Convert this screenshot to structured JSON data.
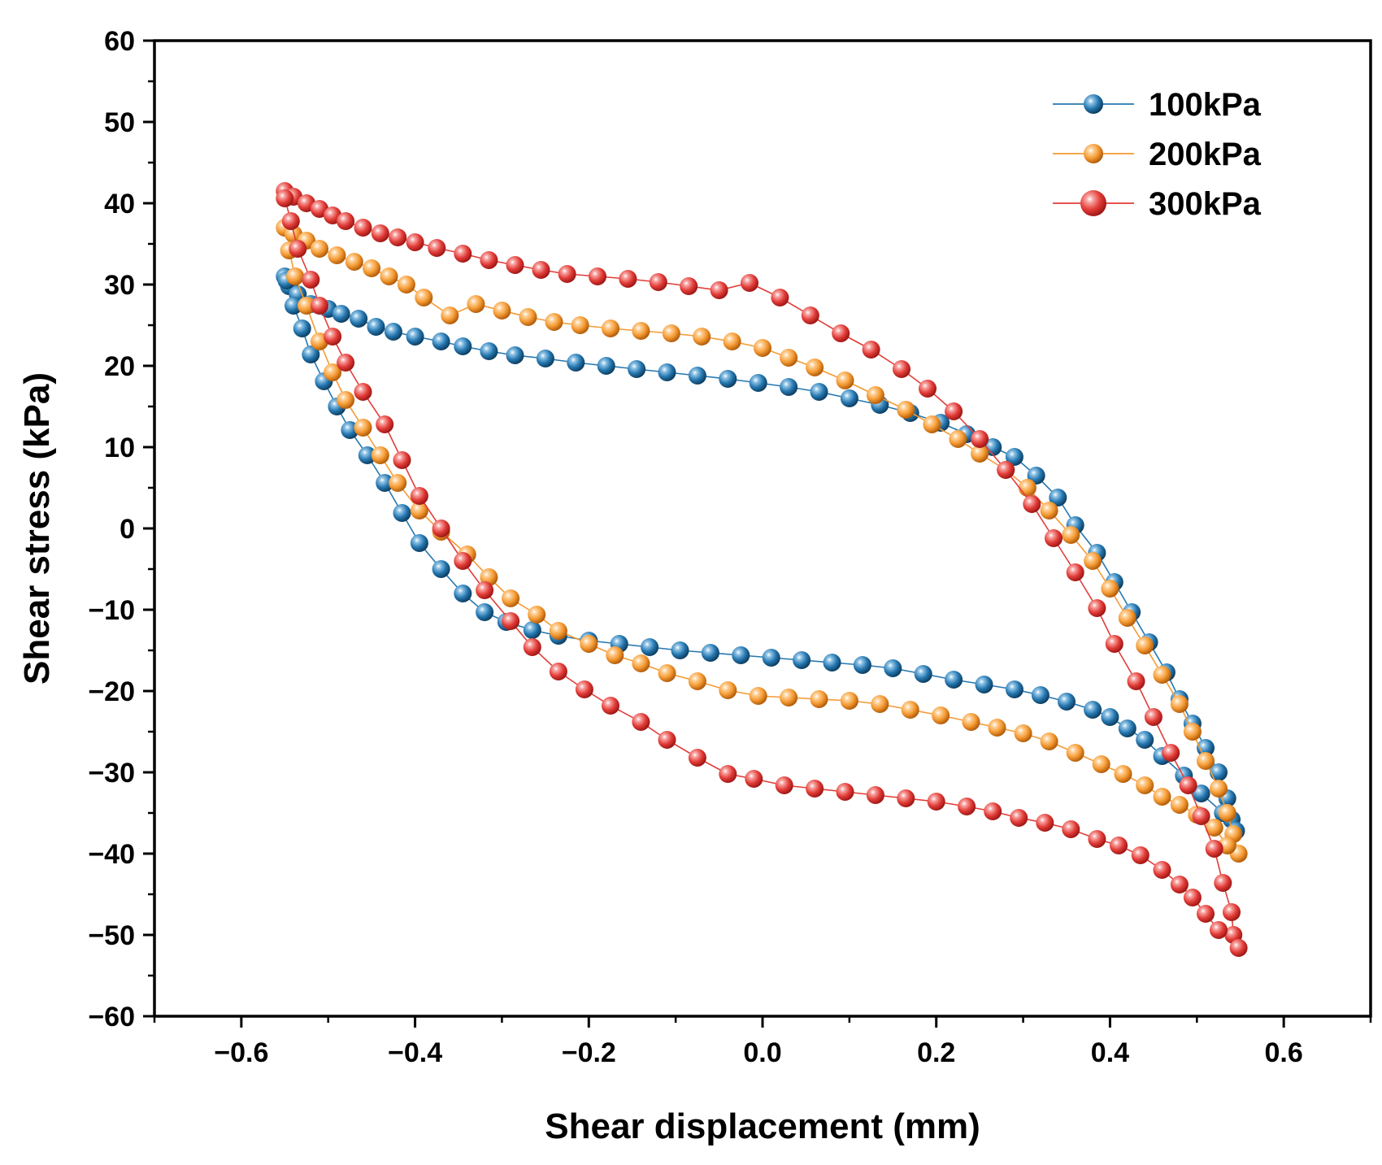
{
  "chart_data": {
    "type": "scatter",
    "title": "",
    "xlabel": "Shear displacement (mm)",
    "ylabel": "Shear stress (kPa)",
    "xlim": [
      -0.7,
      0.7
    ],
    "ylim": [
      -60,
      60
    ],
    "x_ticks": [
      -0.6,
      -0.4,
      -0.2,
      0.0,
      0.2,
      0.4,
      0.6
    ],
    "x_tick_labels": [
      "−0.6",
      "−0.4",
      "−0.2",
      "0.0",
      "0.2",
      "0.4",
      "0.6"
    ],
    "y_ticks": [
      60,
      50,
      40,
      30,
      20,
      10,
      0,
      -10,
      -20,
      -30,
      -40,
      -50,
      -60
    ],
    "y_tick_labels": [
      "60",
      "50",
      "40",
      "30",
      "20",
      "10",
      "0",
      "−10",
      "−20",
      "−30",
      "−40",
      "−50",
      "−60"
    ],
    "grid": false,
    "legend_position": "top-right",
    "series": [
      {
        "name": "100kPa",
        "color": "#2577b0",
        "marker": "circle",
        "points": [
          [
            -0.55,
            31.0
          ],
          [
            -0.545,
            29.8
          ],
          [
            -0.535,
            28.8
          ],
          [
            -0.52,
            27.6
          ],
          [
            -0.5,
            27.0
          ],
          [
            -0.485,
            26.4
          ],
          [
            -0.465,
            25.8
          ],
          [
            -0.445,
            24.8
          ],
          [
            -0.425,
            24.2
          ],
          [
            -0.4,
            23.6
          ],
          [
            -0.37,
            23.0
          ],
          [
            -0.345,
            22.4
          ],
          [
            -0.315,
            21.8
          ],
          [
            -0.285,
            21.3
          ],
          [
            -0.25,
            20.9
          ],
          [
            -0.215,
            20.4
          ],
          [
            -0.18,
            20.0
          ],
          [
            -0.145,
            19.6
          ],
          [
            -0.11,
            19.2
          ],
          [
            -0.075,
            18.8
          ],
          [
            -0.04,
            18.4
          ],
          [
            -0.005,
            17.9
          ],
          [
            0.03,
            17.4
          ],
          [
            0.065,
            16.8
          ],
          [
            0.1,
            16.0
          ],
          [
            0.135,
            15.2
          ],
          [
            0.17,
            14.2
          ],
          [
            0.205,
            13.0
          ],
          [
            0.235,
            11.6
          ],
          [
            0.265,
            10.0
          ],
          [
            0.29,
            8.8
          ],
          [
            0.315,
            6.5
          ],
          [
            0.34,
            3.8
          ],
          [
            0.36,
            0.4
          ],
          [
            0.385,
            -3.0
          ],
          [
            0.405,
            -6.6
          ],
          [
            0.425,
            -10.3
          ],
          [
            0.445,
            -14.0
          ],
          [
            0.465,
            -17.7
          ],
          [
            0.48,
            -21.0
          ],
          [
            0.495,
            -24.0
          ],
          [
            0.51,
            -27.0
          ],
          [
            0.525,
            -30.0
          ],
          [
            0.535,
            -33.2
          ],
          [
            0.54,
            -35.8
          ],
          [
            0.545,
            -37.2
          ],
          [
            0.53,
            -35.0
          ],
          [
            0.505,
            -32.6
          ],
          [
            0.485,
            -30.4
          ],
          [
            0.46,
            -28.0
          ],
          [
            0.44,
            -26.0
          ],
          [
            0.42,
            -24.6
          ],
          [
            0.4,
            -23.2
          ],
          [
            0.38,
            -22.3
          ],
          [
            0.35,
            -21.3
          ],
          [
            0.32,
            -20.5
          ],
          [
            0.29,
            -19.8
          ],
          [
            0.255,
            -19.2
          ],
          [
            0.22,
            -18.6
          ],
          [
            0.185,
            -17.9
          ],
          [
            0.15,
            -17.2
          ],
          [
            0.115,
            -16.8
          ],
          [
            0.08,
            -16.5
          ],
          [
            0.045,
            -16.2
          ],
          [
            0.01,
            -15.9
          ],
          [
            -0.025,
            -15.6
          ],
          [
            -0.06,
            -15.3
          ],
          [
            -0.095,
            -15.0
          ],
          [
            -0.13,
            -14.6
          ],
          [
            -0.165,
            -14.2
          ],
          [
            -0.2,
            -13.8
          ],
          [
            -0.235,
            -13.2
          ],
          [
            -0.265,
            -12.5
          ],
          [
            -0.295,
            -11.5
          ],
          [
            -0.32,
            -10.3
          ],
          [
            -0.345,
            -8.0
          ],
          [
            -0.37,
            -5.0
          ],
          [
            -0.395,
            -1.8
          ],
          [
            -0.415,
            1.9
          ],
          [
            -0.435,
            5.6
          ],
          [
            -0.455,
            9.0
          ],
          [
            -0.475,
            12.1
          ],
          [
            -0.49,
            15.0
          ],
          [
            -0.505,
            18.1
          ],
          [
            -0.52,
            21.4
          ],
          [
            -0.53,
            24.6
          ],
          [
            -0.54,
            27.4
          ],
          [
            -0.548,
            30.5
          ]
        ]
      },
      {
        "name": "200kPa",
        "color": "#f49a33",
        "marker": "circle",
        "points": [
          [
            -0.55,
            37.0
          ],
          [
            -0.54,
            36.2
          ],
          [
            -0.525,
            35.4
          ],
          [
            -0.51,
            34.4
          ],
          [
            -0.49,
            33.6
          ],
          [
            -0.47,
            32.8
          ],
          [
            -0.45,
            32.0
          ],
          [
            -0.43,
            31.0
          ],
          [
            -0.41,
            30.0
          ],
          [
            -0.39,
            28.4
          ],
          [
            -0.36,
            26.2
          ],
          [
            -0.33,
            27.6
          ],
          [
            -0.3,
            26.8
          ],
          [
            -0.27,
            26.0
          ],
          [
            -0.24,
            25.4
          ],
          [
            -0.21,
            25.0
          ],
          [
            -0.175,
            24.6
          ],
          [
            -0.14,
            24.3
          ],
          [
            -0.105,
            24.0
          ],
          [
            -0.07,
            23.6
          ],
          [
            -0.035,
            23.0
          ],
          [
            0.0,
            22.2
          ],
          [
            0.03,
            21.0
          ],
          [
            0.06,
            19.8
          ],
          [
            0.095,
            18.2
          ],
          [
            0.13,
            16.4
          ],
          [
            0.165,
            14.6
          ],
          [
            0.195,
            12.8
          ],
          [
            0.225,
            11.0
          ],
          [
            0.25,
            9.2
          ],
          [
            0.28,
            7.2
          ],
          [
            0.305,
            5.0
          ],
          [
            0.33,
            2.2
          ],
          [
            0.355,
            -0.8
          ],
          [
            0.38,
            -4.0
          ],
          [
            0.4,
            -7.4
          ],
          [
            0.42,
            -11.0
          ],
          [
            0.44,
            -14.4
          ],
          [
            0.46,
            -18.0
          ],
          [
            0.48,
            -21.6
          ],
          [
            0.495,
            -25.0
          ],
          [
            0.51,
            -28.6
          ],
          [
            0.525,
            -32.0
          ],
          [
            0.535,
            -35.0
          ],
          [
            0.542,
            -37.6
          ],
          [
            0.548,
            -40.0
          ],
          [
            0.535,
            -39.0
          ],
          [
            0.52,
            -36.8
          ],
          [
            0.5,
            -35.2
          ],
          [
            0.48,
            -34.0
          ],
          [
            0.46,
            -33.0
          ],
          [
            0.44,
            -31.6
          ],
          [
            0.415,
            -30.2
          ],
          [
            0.39,
            -29.0
          ],
          [
            0.36,
            -27.6
          ],
          [
            0.33,
            -26.2
          ],
          [
            0.3,
            -25.2
          ],
          [
            0.27,
            -24.5
          ],
          [
            0.24,
            -23.8
          ],
          [
            0.205,
            -23.0
          ],
          [
            0.17,
            -22.3
          ],
          [
            0.135,
            -21.6
          ],
          [
            0.1,
            -21.2
          ],
          [
            0.065,
            -21.0
          ],
          [
            0.03,
            -20.8
          ],
          [
            -0.005,
            -20.6
          ],
          [
            -0.04,
            -19.9
          ],
          [
            -0.075,
            -18.8
          ],
          [
            -0.11,
            -17.8
          ],
          [
            -0.14,
            -16.6
          ],
          [
            -0.17,
            -15.6
          ],
          [
            -0.2,
            -14.2
          ],
          [
            -0.235,
            -12.6
          ],
          [
            -0.26,
            -10.6
          ],
          [
            -0.29,
            -8.6
          ],
          [
            -0.315,
            -6.0
          ],
          [
            -0.34,
            -3.2
          ],
          [
            -0.37,
            -0.4
          ],
          [
            -0.395,
            2.2
          ],
          [
            -0.42,
            5.6
          ],
          [
            -0.44,
            9.0
          ],
          [
            -0.46,
            12.4
          ],
          [
            -0.48,
            15.8
          ],
          [
            -0.495,
            19.2
          ],
          [
            -0.51,
            23.0
          ],
          [
            -0.525,
            27.4
          ],
          [
            -0.538,
            31.0
          ],
          [
            -0.545,
            34.2
          ]
        ]
      },
      {
        "name": "300kPa",
        "color": "#e23c38",
        "marker": "circle",
        "points": [
          [
            -0.55,
            41.5
          ],
          [
            -0.54,
            40.8
          ],
          [
            -0.525,
            40.0
          ],
          [
            -0.51,
            39.3
          ],
          [
            -0.495,
            38.5
          ],
          [
            -0.48,
            37.8
          ],
          [
            -0.46,
            37.0
          ],
          [
            -0.44,
            36.3
          ],
          [
            -0.42,
            35.8
          ],
          [
            -0.4,
            35.2
          ],
          [
            -0.375,
            34.5
          ],
          [
            -0.345,
            33.8
          ],
          [
            -0.315,
            33.0
          ],
          [
            -0.285,
            32.4
          ],
          [
            -0.255,
            31.8
          ],
          [
            -0.225,
            31.3
          ],
          [
            -0.19,
            31.0
          ],
          [
            -0.155,
            30.7
          ],
          [
            -0.12,
            30.3
          ],
          [
            -0.085,
            29.8
          ],
          [
            -0.05,
            29.3
          ],
          [
            -0.015,
            30.2
          ],
          [
            0.02,
            28.4
          ],
          [
            0.055,
            26.2
          ],
          [
            0.09,
            24.0
          ],
          [
            0.125,
            22.0
          ],
          [
            0.16,
            19.6
          ],
          [
            0.19,
            17.2
          ],
          [
            0.22,
            14.4
          ],
          [
            0.25,
            11.0
          ],
          [
            0.28,
            7.2
          ],
          [
            0.31,
            3.0
          ],
          [
            0.335,
            -1.2
          ],
          [
            0.36,
            -5.4
          ],
          [
            0.385,
            -9.8
          ],
          [
            0.405,
            -14.2
          ],
          [
            0.43,
            -18.8
          ],
          [
            0.45,
            -23.2
          ],
          [
            0.47,
            -27.6
          ],
          [
            0.49,
            -31.6
          ],
          [
            0.505,
            -35.4
          ],
          [
            0.52,
            -39.4
          ],
          [
            0.53,
            -43.6
          ],
          [
            0.54,
            -47.2
          ],
          [
            0.542,
            -50.0
          ],
          [
            0.548,
            -51.6
          ],
          [
            0.525,
            -49.4
          ],
          [
            0.51,
            -47.4
          ],
          [
            0.495,
            -45.4
          ],
          [
            0.48,
            -43.8
          ],
          [
            0.46,
            -42.0
          ],
          [
            0.435,
            -40.2
          ],
          [
            0.41,
            -39.0
          ],
          [
            0.385,
            -38.2
          ],
          [
            0.355,
            -37.0
          ],
          [
            0.325,
            -36.2
          ],
          [
            0.295,
            -35.6
          ],
          [
            0.265,
            -34.8
          ],
          [
            0.235,
            -34.2
          ],
          [
            0.2,
            -33.6
          ],
          [
            0.165,
            -33.2
          ],
          [
            0.13,
            -32.8
          ],
          [
            0.095,
            -32.4
          ],
          [
            0.06,
            -32.0
          ],
          [
            0.025,
            -31.6
          ],
          [
            -0.01,
            -30.8
          ],
          [
            -0.04,
            -30.2
          ],
          [
            -0.075,
            -28.2
          ],
          [
            -0.11,
            -26.0
          ],
          [
            -0.14,
            -23.8
          ],
          [
            -0.175,
            -21.8
          ],
          [
            -0.205,
            -19.8
          ],
          [
            -0.235,
            -17.6
          ],
          [
            -0.265,
            -14.6
          ],
          [
            -0.29,
            -11.4
          ],
          [
            -0.32,
            -7.6
          ],
          [
            -0.345,
            -4.0
          ],
          [
            -0.37,
            0.0
          ],
          [
            -0.395,
            4.0
          ],
          [
            -0.415,
            8.4
          ],
          [
            -0.435,
            12.8
          ],
          [
            -0.46,
            16.8
          ],
          [
            -0.48,
            20.4
          ],
          [
            -0.495,
            23.6
          ],
          [
            -0.51,
            27.4
          ],
          [
            -0.52,
            30.6
          ],
          [
            -0.535,
            34.4
          ],
          [
            -0.543,
            37.8
          ],
          [
            -0.55,
            40.6
          ]
        ]
      }
    ]
  }
}
